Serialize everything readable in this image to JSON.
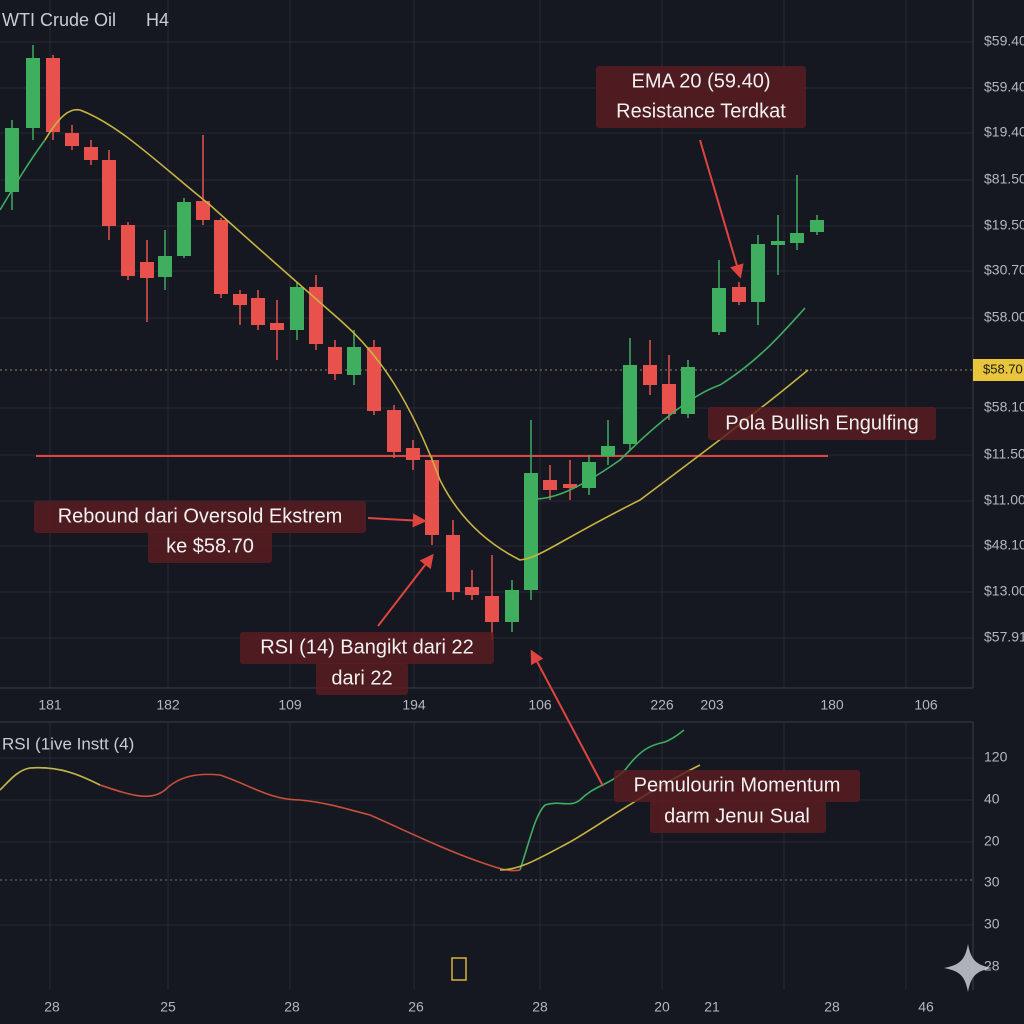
{
  "header": {
    "title": "WTI Crude Oil",
    "timeframe": "H4"
  },
  "price_axis": [
    "$59.40",
    "$59.40",
    "$19.40",
    "$81.50",
    "$19.50",
    "$30.70",
    "$58.00",
    "$58.10",
    "$11.50",
    "$11.00",
    "$48.10",
    "$13.00",
    "$57.91"
  ],
  "current_price": "$58.70",
  "time_axis": [
    "181",
    "182",
    "109",
    "194",
    "106",
    "226",
    "203",
    "180",
    "106"
  ],
  "annotations": [
    {
      "lines": [
        "EMA 20 (59.40)",
        "Resistance Terdkat"
      ]
    },
    {
      "lines": [
        "Pola Bullish Engulfing"
      ]
    },
    {
      "lines": [
        "Rebound dari Oversold Ekstrem",
        "ke $58.70"
      ]
    },
    {
      "lines": [
        "RSI (14) Bangikt dari 22",
        "dari 22"
      ]
    },
    {
      "lines": [
        "Pemulourin Momentum",
        "darm Jenuı Sual"
      ]
    }
  ],
  "rsi": {
    "label": "RSI (1ive Instt (4)",
    "axis": [
      "120",
      "40",
      "20",
      "30",
      "30",
      "28"
    ],
    "time_axis": [
      "28",
      "25",
      "28",
      "26",
      "28",
      "20",
      "21",
      "28",
      "46"
    ]
  }
}
